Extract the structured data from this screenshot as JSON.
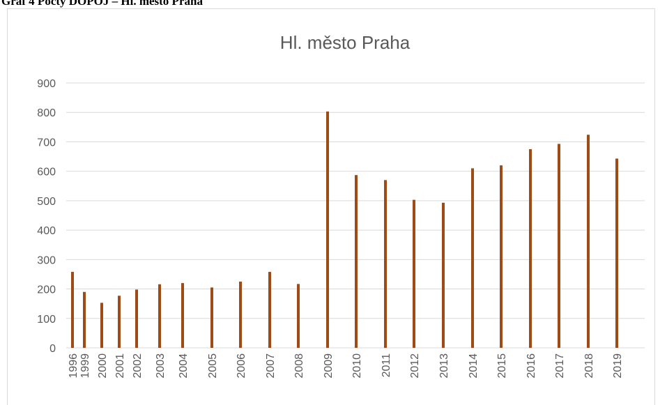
{
  "caption": "Graf 4 Počty DOPOJ – Hl. město Praha",
  "chart_data": {
    "type": "bar",
    "title": "Hl. město Praha",
    "categories": [
      "1996",
      "1999",
      "2000",
      "2001",
      "2002",
      "2003",
      "2004",
      "2005",
      "2006",
      "2007",
      "2008",
      "2009",
      "2010",
      "2011",
      "2012",
      "2013",
      "2014",
      "2015",
      "2016",
      "2017",
      "2018",
      "2019"
    ],
    "values": [
      258,
      190,
      153,
      177,
      198,
      216,
      220,
      205,
      225,
      258,
      217,
      803,
      587,
      570,
      503,
      493,
      610,
      620,
      675,
      693,
      724,
      643
    ],
    "color": "#9e4b16",
    "ylim": [
      0,
      900
    ],
    "yticks": [
      0,
      100,
      200,
      300,
      400,
      500,
      600,
      700,
      800,
      900
    ],
    "grid": true
  }
}
